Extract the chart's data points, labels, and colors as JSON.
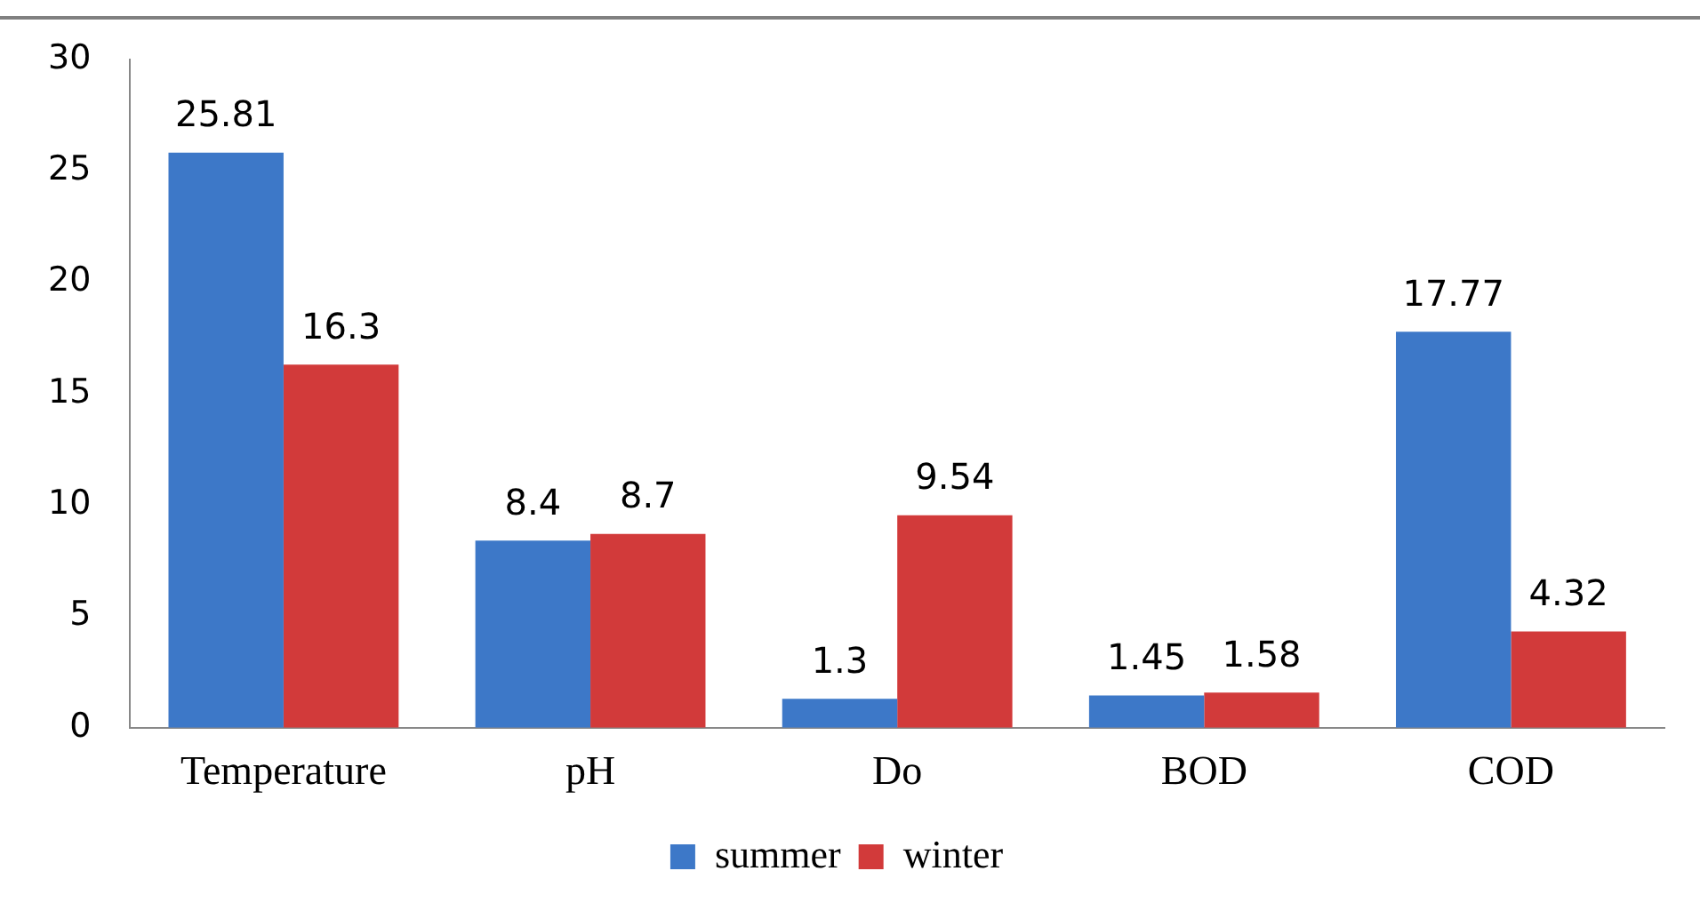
{
  "chart_data": {
    "type": "bar",
    "categories": [
      "Temperature",
      "pH",
      "Do",
      "BOD",
      "COD"
    ],
    "series": [
      {
        "name": "summer",
        "color": "#3d78c8",
        "values": [
          25.81,
          8.4,
          1.3,
          1.45,
          17.77
        ]
      },
      {
        "name": "winter",
        "color": "#d23a3a",
        "values": [
          16.3,
          8.7,
          9.54,
          1.58,
          4.32
        ]
      }
    ],
    "ylim": [
      0,
      30
    ],
    "yticks": [
      0,
      5,
      10,
      15,
      20,
      25,
      30
    ],
    "grid": false,
    "legend": "bottom",
    "data_labels": true
  }
}
